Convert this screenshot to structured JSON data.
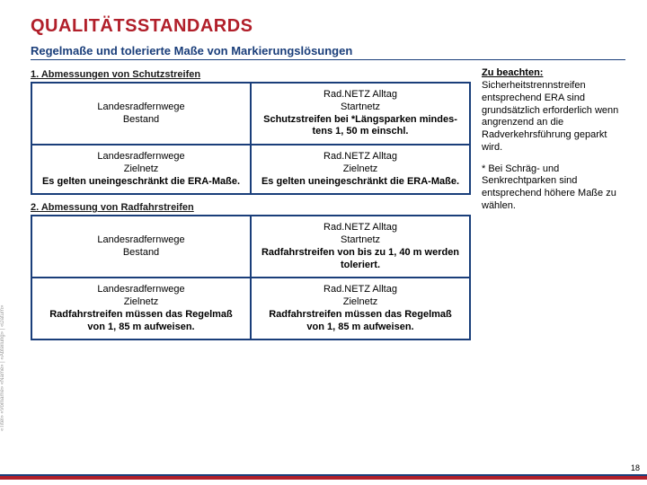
{
  "colors": {
    "accent": "#1a3e7a",
    "title": "#b11f2a",
    "text": "#1a1a1a",
    "footer": "#b11f2a",
    "footer_top": "#1a3e7a"
  },
  "title": {
    "text": "QUALITÄTSSTANDARDS",
    "fontsize": 20
  },
  "subtitle": {
    "text": "Regelmaße und tolerierte Maße von Markierungslösungen",
    "fontsize": 13
  },
  "section1": {
    "heading": "1. Abmessungen von Schutzstreifen",
    "rows": [
      {
        "left": {
          "l1": "Landesradfernwege",
          "l2": "Bestand",
          "bold": ""
        },
        "right": {
          "l1": "Rad.NETZ Alltag",
          "l2": "Startnetz",
          "bold": "Schutzstreifen bei *Längsparken mindes-tens 1, 50 m einschl."
        }
      },
      {
        "left": {
          "l1": "Landesradfernwege",
          "l2": "Zielnetz",
          "bold": "Es gelten uneingeschränkt die ERA-Maße."
        },
        "right": {
          "l1": "Rad.NETZ Alltag",
          "l2": "Zielnetz",
          "bold": "Es gelten uneingeschränkt die ERA-Maße."
        }
      }
    ]
  },
  "section2": {
    "heading": "2. Abmessung von Radfahrstreifen",
    "rows": [
      {
        "left": {
          "l1": "Landesradfernwege",
          "l2": "Bestand",
          "bold": ""
        },
        "right": {
          "l1": "Rad.NETZ Alltag",
          "l2": "Startnetz",
          "bold": "Radfahrstreifen von bis zu 1, 40 m werden toleriert."
        }
      },
      {
        "left": {
          "l1": "Landesradfernwege",
          "l2": "Zielnetz",
          "bold": "Radfahrstreifen müssen das Regelmaß von 1, 85 m aufweisen."
        },
        "right": {
          "l1": "Rad.NETZ Alltag",
          "l2": "Zielnetz",
          "bold": "Radfahrstreifen müssen das Regelmaß von 1, 85 m aufweisen."
        }
      }
    ]
  },
  "notes": {
    "head": "Zu beachten:",
    "p1": "Sicherheitstrennstreifen entsprechend ERA sind grundsätzlich erforderlich wenn angrenzend an die Radverkehrsführung geparkt wird.",
    "p2": "* Bei Schräg- und Senkrechtparken sind entsprechend höhere Maße zu wählen."
  },
  "side_text": "«Titel» «Vorname» «Name» | «Abteilung» | «Datum»",
  "page_number": "18",
  "table_style": {
    "border_color": "#1a3e7a",
    "col_widths": [
      "50%",
      "50%"
    ]
  }
}
